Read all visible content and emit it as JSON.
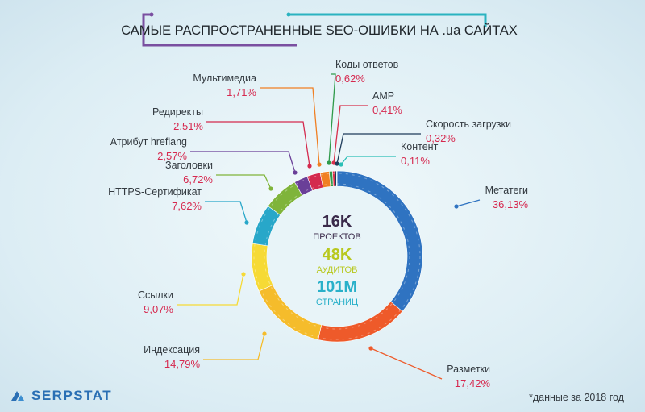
{
  "title": "САМЫЕ РАСПРОСТРАНЕННЫЕ SEO-ОШИБКИ НА .ua САЙТАХ",
  "logo": {
    "text": "SERPSTAT",
    "icon": "serpstat-logo-icon"
  },
  "footnote": "*данные за 2018 год",
  "center": {
    "projects_value": "16K",
    "projects_label": "ПРОЕКТОВ",
    "audits_value": "48K",
    "audits_label": "АУДИТОВ",
    "pages_value": "101M",
    "pages_label": "СТРАНИЦ"
  },
  "colors": {
    "title_frame_left": "#7a4fa0",
    "title_frame_right": "#2bb3c0",
    "percent": "#d6294f",
    "center_projects": "#3a2a4a",
    "center_audits": "#b8c81e",
    "center_pages": "#29b0c9"
  },
  "chart_data": {
    "type": "pie",
    "variant": "donut",
    "title": "САМЫЕ РАСПРОСТРАНЕННЫЕ SEO-ОШИБКИ НА .ua САЙТАХ",
    "slices": [
      {
        "label": "Метатеги",
        "value": 36.13,
        "display": "36,13%",
        "color": "#2f73c1"
      },
      {
        "label": "Разметки",
        "value": 17.42,
        "display": "17,42%",
        "color": "#ee5a2a"
      },
      {
        "label": "Индексация",
        "value": 14.79,
        "display": "14,79%",
        "color": "#f5bc2b"
      },
      {
        "label": "Ссылки",
        "value": 9.07,
        "display": "9,07%",
        "color": "#f6da35"
      },
      {
        "label": "HTTPS-Сертификат",
        "value": 7.62,
        "display": "7,62%",
        "color": "#28a7c9"
      },
      {
        "label": "Заголовки",
        "value": 6.72,
        "display": "6,72%",
        "color": "#7fb43a"
      },
      {
        "label": "Атрибут hreflang",
        "value": 2.57,
        "display": "2,57%",
        "color": "#6a3f98"
      },
      {
        "label": "Редиректы",
        "value": 2.51,
        "display": "2,51%",
        "color": "#d42a4e"
      },
      {
        "label": "Мультимедиа",
        "value": 1.71,
        "display": "1,71%",
        "color": "#f07f22"
      },
      {
        "label": "Коды ответов",
        "value": 0.62,
        "display": "0,62%",
        "color": "#2f9a4a"
      },
      {
        "label": "AMP",
        "value": 0.41,
        "display": "0,41%",
        "color": "#d8304b"
      },
      {
        "label": "Скорость загрузки",
        "value": 0.32,
        "display": "0,32%",
        "color": "#1e3b5a"
      },
      {
        "label": "Контент",
        "value": 0.11,
        "display": "0,11%",
        "color": "#2bbfb6"
      }
    ]
  }
}
